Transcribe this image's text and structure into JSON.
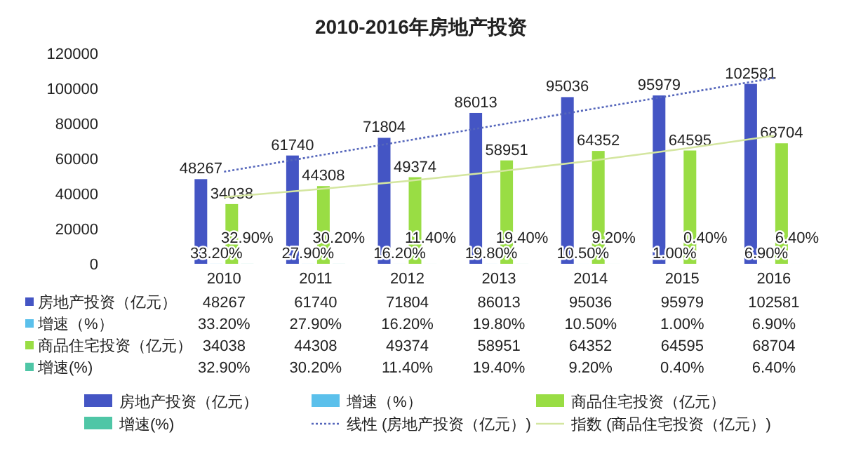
{
  "chart_data": {
    "type": "bar",
    "title": "2010-2016年房地产投资",
    "categories": [
      "2010",
      "2011",
      "2012",
      "2013",
      "2014",
      "2015",
      "2016"
    ],
    "ylim": [
      0,
      120000
    ],
    "yticks": [
      0,
      20000,
      40000,
      60000,
      80000,
      100000,
      120000
    ],
    "legend": "bottom",
    "series": [
      {
        "name": "房地产投资（亿元）",
        "color": "#4455c4",
        "values": [
          48267,
          61740,
          71804,
          86013,
          95036,
          95979,
          102581
        ],
        "value_labels": [
          "48267",
          "61740",
          "71804",
          "86013",
          "95036",
          "95979",
          "102581"
        ]
      },
      {
        "name": "增速（%）",
        "color": "#5bc0eb",
        "values": [
          33.2,
          27.9,
          16.2,
          19.8,
          10.5,
          1.0,
          6.9
        ],
        "value_labels": [
          "33.20%",
          "27.90%",
          "16.20%",
          "19.80%",
          "10.50%",
          "1.00%",
          "6.90%"
        ]
      },
      {
        "name": "商品住宅投资（亿元）",
        "color": "#99dd44",
        "values": [
          34038,
          44308,
          49374,
          58951,
          64352,
          64595,
          68704
        ],
        "value_labels": [
          "34038",
          "44308",
          "49374",
          "58951",
          "64352",
          "64595",
          "68704"
        ]
      },
      {
        "name": "增速(%)",
        "color": "#4fc6a6",
        "values": [
          32.9,
          30.2,
          11.4,
          19.4,
          9.2,
          0.4,
          6.4
        ],
        "value_labels": [
          "32.90%",
          "30.20%",
          "11.40%",
          "19.40%",
          "9.20%",
          "0.40%",
          "6.40%"
        ]
      },
      {
        "name": "线性 (房地产投资（亿元）)",
        "type": "line",
        "color": "#5566bb",
        "line_style": "dotted",
        "values": [
          52500,
          61400,
          70300,
          79200,
          88100,
          97000,
          105900
        ]
      },
      {
        "name": "指数 (商品住宅投资（亿元）)",
        "type": "line",
        "color": "#d4e6a0",
        "line_style": "solid",
        "values": [
          38000,
          42400,
          47200,
          52700,
          58700,
          65500,
          73000
        ]
      }
    ]
  }
}
